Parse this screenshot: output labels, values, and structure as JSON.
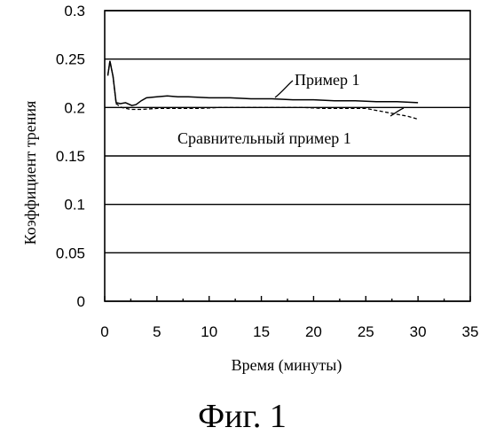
{
  "figure_caption": "Фиг. 1",
  "chart_data": {
    "type": "line",
    "title": "",
    "xlabel": "Время (минуты)",
    "ylabel": "Коэффициент трения",
    "xlim": [
      0,
      35
    ],
    "ylim": [
      0,
      0.3
    ],
    "x_ticks": [
      "0",
      "5",
      "10",
      "15",
      "20",
      "25",
      "30",
      "35"
    ],
    "y_ticks": [
      "0",
      "0.05",
      "0.1",
      "0.15",
      "0.2",
      "0.25",
      "0.3"
    ],
    "grid": "horizontal",
    "series": [
      {
        "name": "Пример 1",
        "style": "solid",
        "color": "#000000",
        "points": [
          [
            0.3,
            0.233
          ],
          [
            0.5,
            0.248
          ],
          [
            0.8,
            0.232
          ],
          [
            1.1,
            0.205
          ],
          [
            1.5,
            0.204
          ],
          [
            2.0,
            0.205
          ],
          [
            2.6,
            0.202
          ],
          [
            3.0,
            0.203
          ],
          [
            3.5,
            0.207
          ],
          [
            4.0,
            0.21
          ],
          [
            5.0,
            0.211
          ],
          [
            6.0,
            0.212
          ],
          [
            7.0,
            0.211
          ],
          [
            8.0,
            0.211
          ],
          [
            10.0,
            0.21
          ],
          [
            12.0,
            0.21
          ],
          [
            14.0,
            0.209
          ],
          [
            16.0,
            0.209
          ],
          [
            18.0,
            0.208
          ],
          [
            20.0,
            0.208
          ],
          [
            22.0,
            0.207
          ],
          [
            24.0,
            0.207
          ],
          [
            26.0,
            0.206
          ],
          [
            28.0,
            0.206
          ],
          [
            30.0,
            0.205
          ]
        ]
      },
      {
        "name": "Сравнительный пример 1",
        "style": "dashed",
        "color": "#000000",
        "points": [
          [
            0.3,
            0.233
          ],
          [
            0.5,
            0.248
          ],
          [
            0.8,
            0.232
          ],
          [
            1.1,
            0.204
          ],
          [
            1.6,
            0.2
          ],
          [
            2.5,
            0.198
          ],
          [
            3.5,
            0.198
          ],
          [
            5.0,
            0.199
          ],
          [
            7.0,
            0.199
          ],
          [
            9.0,
            0.199
          ],
          [
            11.0,
            0.2
          ],
          [
            13.0,
            0.2
          ],
          [
            15.0,
            0.2
          ],
          [
            17.0,
            0.2
          ],
          [
            19.0,
            0.2
          ],
          [
            21.0,
            0.199
          ],
          [
            23.0,
            0.199
          ],
          [
            25.0,
            0.199
          ],
          [
            26.0,
            0.197
          ],
          [
            27.0,
            0.195
          ],
          [
            28.0,
            0.193
          ],
          [
            29.0,
            0.191
          ],
          [
            30.0,
            0.188
          ]
        ]
      }
    ]
  }
}
